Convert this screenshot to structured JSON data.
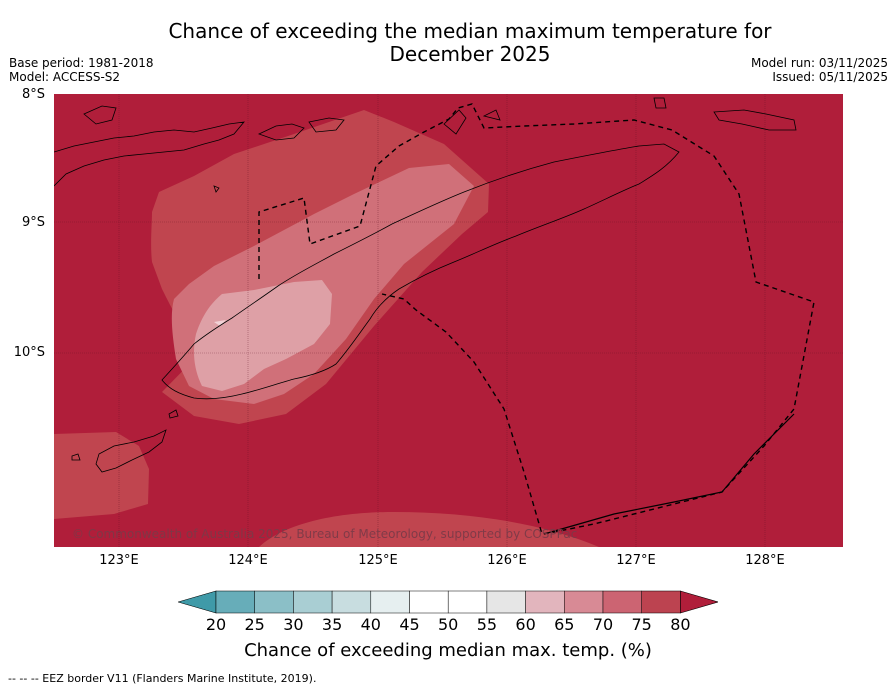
{
  "title_line1": "Chance of exceeding the median maximum temperature for",
  "title_line2": "December 2025",
  "meta_left": {
    "base_period": "Base period: 1981-2018",
    "model": "Model: ACCESS-S2"
  },
  "meta_right": {
    "model_run": "Model run: 03/11/2025",
    "issued": "Issued: 05/11/2025"
  },
  "lat_labels": [
    "8°S",
    "9°S",
    "10°S"
  ],
  "lon_labels": [
    "123°E",
    "124°E",
    "125°E",
    "126°E",
    "127°E",
    "128°E"
  ],
  "copyright": "© Commonwealth of Australia 2025, Bureau of Meteorology, supported by COSPPac",
  "colorbar": {
    "ticks": [
      "20",
      "25",
      "30",
      "35",
      "40",
      "45",
      "50",
      "55",
      "60",
      "65",
      "70",
      "75",
      "80"
    ],
    "colors": [
      "#3f9aa8",
      "#67adb9",
      "#8bbfc7",
      "#a9ced3",
      "#c8dde0",
      "#e6eff0",
      "#ffffff",
      "#ffffff",
      "#e6e6e6",
      "#e2b5bd",
      "#d88a95",
      "#cc6472",
      "#bc4350",
      "#b01e3a"
    ],
    "title": "Chance of exceeding median max. temp. (%)"
  },
  "colors": {
    "base": "#b01e3a",
    "band_70_75": "#c0454f",
    "band_65_70": "#d07079",
    "band_60_65": "#dea0a6"
  },
  "footer": "--  --  -- EEZ border V11 (Flanders Marine Institute, 2019)."
}
